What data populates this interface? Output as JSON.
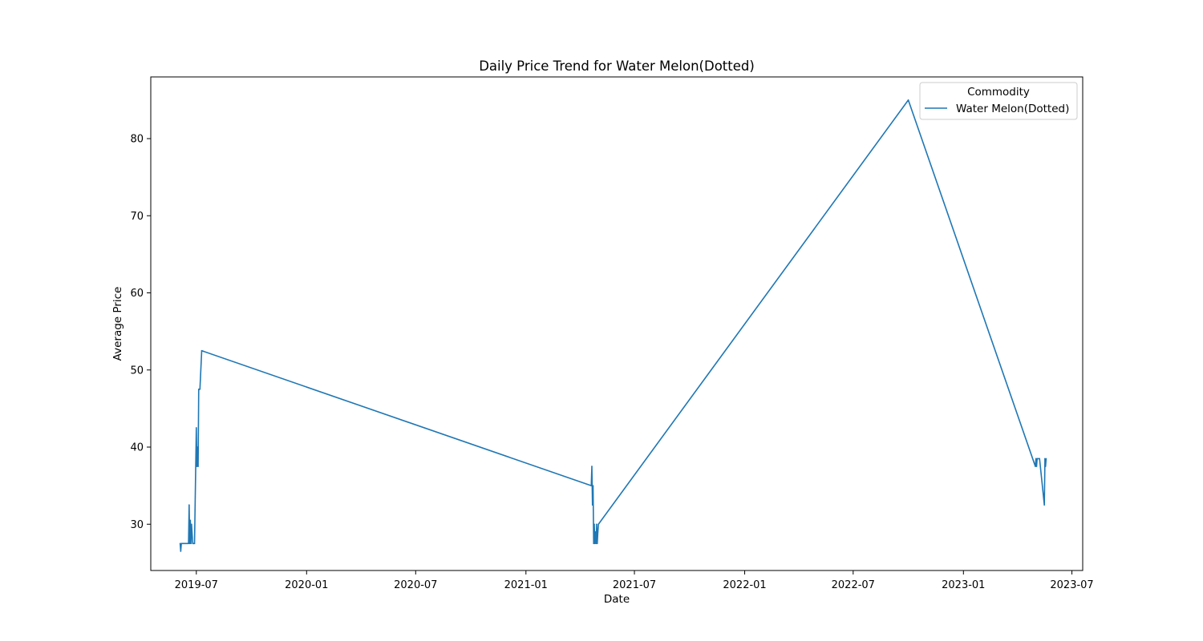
{
  "chart_data": {
    "type": "line",
    "title": "Daily Price Trend for Water Melon(Dotted)",
    "xlabel": "Date",
    "ylabel": "Average Price",
    "x_range": [
      "2019-04-16",
      "2023-07-19"
    ],
    "ylim": [
      24,
      88
    ],
    "x_ticks": [
      "2019-07-01",
      "2020-01-01",
      "2020-07-01",
      "2021-01-01",
      "2021-07-01",
      "2022-01-01",
      "2022-07-01",
      "2023-01-01",
      "2023-07-01"
    ],
    "x_tick_labels": [
      "2019-07",
      "2020-01",
      "2020-07",
      "2021-01",
      "2021-07",
      "2022-01",
      "2022-07",
      "2023-01",
      "2023-07"
    ],
    "y_ticks": [
      30,
      40,
      50,
      60,
      70,
      80
    ],
    "y_tick_labels": [
      "30",
      "40",
      "50",
      "60",
      "70",
      "80"
    ],
    "grid": false,
    "legend": {
      "title": "Commodity",
      "position": "top-right"
    },
    "series": [
      {
        "name": "Water Melon(Dotted)",
        "color": "#1f77b4",
        "x": [
          "2019-06-04",
          "2019-06-05",
          "2019-06-06",
          "2019-06-07",
          "2019-06-10",
          "2019-06-18",
          "2019-06-19",
          "2019-06-20",
          "2019-06-21",
          "2019-06-22",
          "2019-06-23",
          "2019-06-25",
          "2019-06-26",
          "2019-06-27",
          "2019-06-28",
          "2019-06-29",
          "2019-07-01",
          "2019-07-02",
          "2019-07-03",
          "2019-07-04",
          "2019-07-05",
          "2019-07-06",
          "2019-07-07",
          "2019-07-10",
          "2021-04-20",
          "2021-04-21",
          "2021-04-22",
          "2021-04-23",
          "2021-04-24",
          "2021-04-25",
          "2021-04-26",
          "2021-04-27",
          "2021-04-28",
          "2021-04-29",
          "2021-04-30",
          "2021-05-01",
          "2021-05-02",
          "2022-10-01",
          "2023-05-01",
          "2023-05-02",
          "2023-05-03",
          "2023-05-04",
          "2023-05-08",
          "2023-05-16",
          "2023-05-17",
          "2023-05-18",
          "2023-05-19"
        ],
        "values": [
          27.5,
          26.5,
          27.5,
          27.5,
          27.5,
          27.5,
          32.5,
          27.5,
          30.5,
          27.5,
          30,
          27.5,
          27.5,
          27.5,
          27.5,
          32.5,
          42.5,
          37.5,
          40,
          37.5,
          47.5,
          47.5,
          47.5,
          52.5,
          35,
          37.5,
          32.5,
          35,
          27.5,
          30,
          27.5,
          29,
          27.5,
          30,
          27.5,
          29,
          30,
          85,
          37.5,
          38.5,
          37.5,
          38.5,
          38.5,
          32.5,
          38.5,
          37.5,
          38.5
        ]
      }
    ]
  }
}
